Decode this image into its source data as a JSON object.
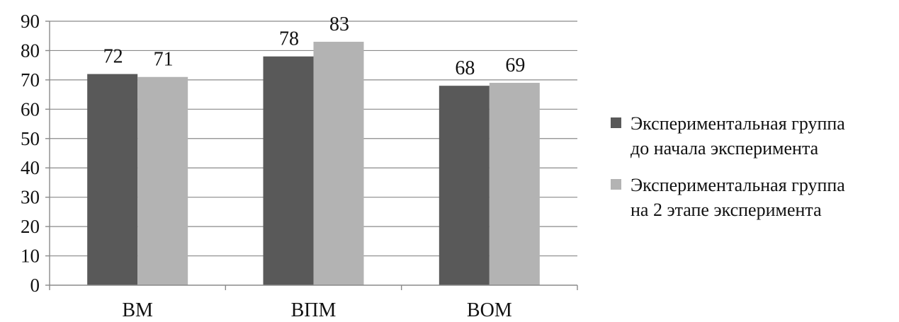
{
  "chart_data": {
    "type": "bar",
    "categories": [
      "ВМ",
      "ВПМ",
      "ВОМ"
    ],
    "series": [
      {
        "name": "Экспериментальная группа до начала эксперимента",
        "name_lines": [
          "Экспериментальная группа",
          "до начала эксперимента"
        ],
        "values": [
          72,
          78,
          68
        ],
        "color": "#595959"
      },
      {
        "name": "Экспериментальная группа на 2 этапе эксперимента",
        "name_lines": [
          "Экспериментальная группа",
          "на 2 этапе эксперимента"
        ],
        "values": [
          71,
          83,
          69
        ],
        "color": "#b3b3b3"
      }
    ],
    "ylim": [
      0,
      90
    ],
    "yticks": [
      0,
      10,
      20,
      30,
      40,
      50,
      60,
      70,
      80,
      90
    ],
    "grid": true,
    "legend": "right",
    "data_labels": true,
    "title": "",
    "xlabel": "",
    "ylabel": ""
  }
}
